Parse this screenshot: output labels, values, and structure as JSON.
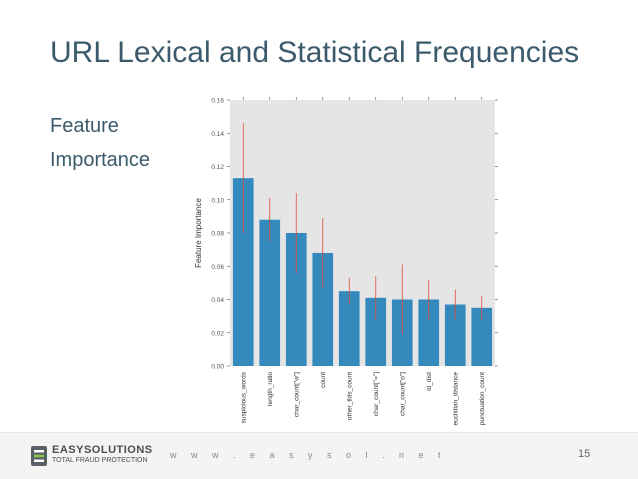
{
  "slide": {
    "title": "URL Lexical and Statistical Frequencies",
    "label_line1": "Feature",
    "label_line2": "Importance"
  },
  "footer": {
    "brand_name": "EASYSOLUTIONS",
    "brand_tagline": "TOTAL FRAUD PROTECTION",
    "url": "w w w . e a s y s o l . n e t",
    "page_number": "15"
  },
  "colors": {
    "bar": "#348abd",
    "error_bar": "#e24a33",
    "plot_background": "#e5e5e5",
    "title_text": "#3b5a6b"
  },
  "chart_data": {
    "type": "bar",
    "title": "",
    "xlabel": "",
    "ylabel": "Feature Importance",
    "ylim": [
      0,
      0.16
    ],
    "yticks": [
      "0.00",
      "0.02",
      "0.04",
      "0.06",
      "0.08",
      "0.10",
      "0.12",
      "0.14",
      "0.16"
    ],
    "grid": false,
    "categories": [
      "suspicious_words",
      "length_ratio",
      "char_count[\"w\"]",
      "count",
      "other_tlds_count",
      "char_count[\"=\"]",
      "char_count[\"o\"]",
      "id_dist",
      "euclidian_distance",
      "punctuation_count"
    ],
    "values": [
      0.113,
      0.088,
      0.08,
      0.068,
      0.045,
      0.041,
      0.04,
      0.04,
      0.037,
      0.035
    ],
    "errors": [
      0.033,
      0.013,
      0.024,
      0.021,
      0.008,
      0.013,
      0.021,
      0.012,
      0.009,
      0.007
    ]
  }
}
